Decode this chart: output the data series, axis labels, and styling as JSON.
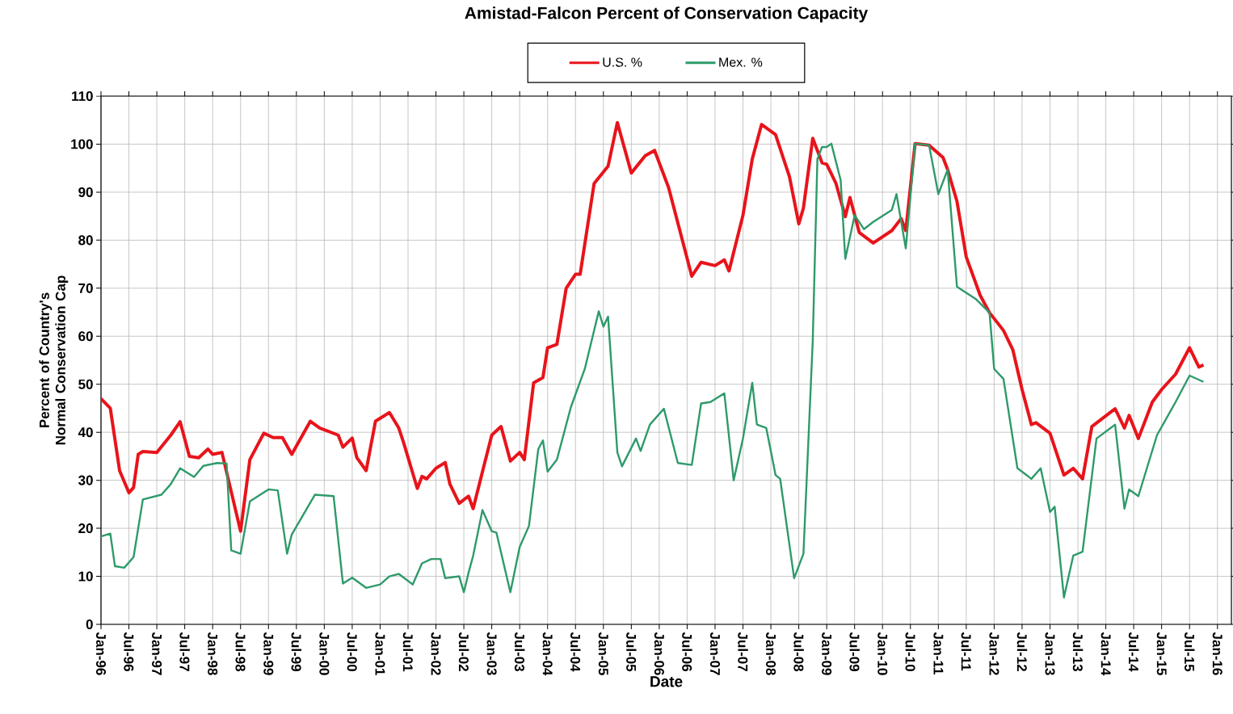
{
  "chart_data": {
    "type": "line",
    "title": "Amistad-Falcon  Percent of Conservation Capacity",
    "xlabel": "Date",
    "ylabel": "Percent of Country's Normal Conservation Cap",
    "xlim": [
      "1996-01",
      "2016-04"
    ],
    "ylim": [
      0,
      110
    ],
    "yticks": [
      0,
      10,
      20,
      30,
      40,
      50,
      60,
      70,
      80,
      90,
      100,
      110
    ],
    "xticks": [
      {
        "value": "1996-01",
        "label": "Jan-96"
      },
      {
        "value": "1996-07",
        "label": "Jul-96"
      },
      {
        "value": "1997-01",
        "label": "Jan-97"
      },
      {
        "value": "1997-07",
        "label": "Jul-97"
      },
      {
        "value": "1998-01",
        "label": "Jan-98"
      },
      {
        "value": "1998-07",
        "label": "Jul-98"
      },
      {
        "value": "1999-01",
        "label": "Jan-99"
      },
      {
        "value": "1999-07",
        "label": "Jul-99"
      },
      {
        "value": "2000-01",
        "label": "Jan-00"
      },
      {
        "value": "2000-07",
        "label": "Jul-00"
      },
      {
        "value": "2001-01",
        "label": "Jan-01"
      },
      {
        "value": "2001-07",
        "label": "Jul-01"
      },
      {
        "value": "2002-01",
        "label": "Jan-02"
      },
      {
        "value": "2002-07",
        "label": "Jul-02"
      },
      {
        "value": "2003-01",
        "label": "Jan-03"
      },
      {
        "value": "2003-07",
        "label": "Jul-03"
      },
      {
        "value": "2004-01",
        "label": "Jan-04"
      },
      {
        "value": "2004-07",
        "label": "Jul-04"
      },
      {
        "value": "2005-01",
        "label": "Jan-05"
      },
      {
        "value": "2005-07",
        "label": "Jul-05"
      },
      {
        "value": "2006-01",
        "label": "Jan-06"
      },
      {
        "value": "2006-07",
        "label": "Jul-06"
      },
      {
        "value": "2007-01",
        "label": "Jan-07"
      },
      {
        "value": "2007-07",
        "label": "Jul-07"
      },
      {
        "value": "2008-01",
        "label": "Jan-08"
      },
      {
        "value": "2008-07",
        "label": "Jul-08"
      },
      {
        "value": "2009-01",
        "label": "Jan-09"
      },
      {
        "value": "2009-07",
        "label": "Jul-09"
      },
      {
        "value": "2010-01",
        "label": "Jan-10"
      },
      {
        "value": "2010-07",
        "label": "Jul-10"
      },
      {
        "value": "2011-01",
        "label": "Jan-11"
      },
      {
        "value": "2011-07",
        "label": "Jul-11"
      },
      {
        "value": "2012-01",
        "label": "Jan-12"
      },
      {
        "value": "2012-07",
        "label": "Jul-12"
      },
      {
        "value": "2013-01",
        "label": "Jan-13"
      },
      {
        "value": "2013-07",
        "label": "Jul-13"
      },
      {
        "value": "2014-01",
        "label": "Jan-14"
      },
      {
        "value": "2014-07",
        "label": "Jul-14"
      },
      {
        "value": "2015-01",
        "label": "Jan-15"
      },
      {
        "value": "2015-07",
        "label": "Jul-15"
      },
      {
        "value": "2016-01",
        "label": "Jan-16"
      }
    ],
    "grid": true,
    "legend": "top",
    "marker": "none",
    "line_style": "solid",
    "series": [
      {
        "name": "U.S. %",
        "color": "#e8141b",
        "x": [
          "1996-01",
          "1996-03",
          "1996-05",
          "1996-07",
          "1996-08",
          "1996-09",
          "1996-10",
          "1997-01",
          "1997-04",
          "1997-06",
          "1997-08",
          "1997-10",
          "1997-12",
          "1998-01",
          "1998-03",
          "1998-07",
          "1998-09",
          "1998-12",
          "1999-02",
          "1999-04",
          "1999-06",
          "1999-10",
          "1999-12",
          "2000-04",
          "2000-05",
          "2000-07",
          "2000-08",
          "2000-10",
          "2000-12",
          "2001-03",
          "2001-05",
          "2001-06",
          "2001-09",
          "2001-10",
          "2001-11",
          "2002-01",
          "2002-03",
          "2002-04",
          "2002-06",
          "2002-08",
          "2002-09",
          "2002-11",
          "2003-01",
          "2003-03",
          "2003-05",
          "2003-07",
          "2003-08",
          "2003-10",
          "2003-12",
          "2004-01",
          "2004-03",
          "2004-05",
          "2004-07",
          "2004-08",
          "2004-11",
          "2005-02",
          "2005-04",
          "2005-07",
          "2005-10",
          "2005-12",
          "2006-03",
          "2006-08",
          "2006-10",
          "2007-01",
          "2007-03",
          "2007-04",
          "2007-07",
          "2007-09",
          "2007-11",
          "2008-02",
          "2008-05",
          "2008-07",
          "2008-08",
          "2008-10",
          "2008-12",
          "2009-01",
          "2009-03",
          "2009-05",
          "2009-06",
          "2009-08",
          "2009-11",
          "2010-03",
          "2010-05",
          "2010-06",
          "2010-08",
          "2010-11",
          "2011-02",
          "2011-03",
          "2011-05",
          "2011-07",
          "2011-10",
          "2011-12",
          "2012-03",
          "2012-05",
          "2012-07",
          "2012-09",
          "2012-10",
          "2013-01",
          "2013-04",
          "2013-06",
          "2013-08",
          "2013-10",
          "2014-03",
          "2014-05",
          "2014-06",
          "2014-08",
          "2014-11",
          "2015-01",
          "2015-04",
          "2015-07",
          "2015-09",
          "2015-10"
        ],
        "values": [
          47,
          45,
          32,
          27.4,
          28.5,
          35.4,
          36,
          35.8,
          39.4,
          42.2,
          35,
          34.7,
          36.5,
          35.4,
          35.8,
          19.4,
          34.3,
          39.8,
          38.9,
          38.9,
          35.4,
          42.3,
          40.9,
          39.4,
          36.9,
          38.8,
          34.7,
          32,
          42.3,
          44.1,
          40.9,
          38,
          28.3,
          30.8,
          30.3,
          32.5,
          33.7,
          29.2,
          25.2,
          26.7,
          24.1,
          31.8,
          39.4,
          41.2,
          34,
          35.8,
          34.3,
          50.3,
          51.4,
          57.6,
          58.3,
          70,
          72.9,
          72.9,
          91.8,
          95.4,
          104.5,
          94,
          97.6,
          98.7,
          91,
          72.5,
          75.4,
          74.7,
          75.9,
          73.6,
          85.2,
          96.9,
          104.1,
          102,
          93.2,
          83.4,
          86.7,
          101.2,
          96.1,
          95.8,
          91.8,
          84.9,
          88.9,
          81.6,
          79.4,
          82,
          84.5,
          82,
          100.1,
          99.8,
          97.2,
          94.7,
          88.1,
          76.5,
          68.5,
          64.9,
          61.2,
          57.2,
          48.9,
          41.6,
          42,
          39.8,
          31.1,
          32.5,
          30.3,
          41.2,
          44.9,
          40.9,
          43.5,
          38.7,
          46.3,
          48.9,
          52.1,
          57.6,
          53.6,
          54
        ]
      },
      {
        "name": "Mex. %",
        "color": "#2e9a6a",
        "x": [
          "1996-01",
          "1996-03",
          "1996-04",
          "1996-06",
          "1996-08",
          "1996-10",
          "1997-02",
          "1997-04",
          "1997-06",
          "1997-09",
          "1997-11",
          "1998-02",
          "1998-04",
          "1998-05",
          "1998-07",
          "1998-09",
          "1999-01",
          "1999-03",
          "1999-05",
          "1999-06",
          "1999-11",
          "2000-03",
          "2000-05",
          "2000-07",
          "2000-10",
          "2001-01",
          "2001-03",
          "2001-05",
          "2001-08",
          "2001-10",
          "2001-12",
          "2002-02",
          "2002-03",
          "2002-06",
          "2002-07",
          "2002-08",
          "2002-09",
          "2002-11",
          "2003-01",
          "2003-02",
          "2003-05",
          "2003-07",
          "2003-09",
          "2003-11",
          "2003-12",
          "2004-01",
          "2004-03",
          "2004-06",
          "2004-09",
          "2004-12",
          "2005-01",
          "2005-02",
          "2005-04",
          "2005-05",
          "2005-08",
          "2005-09",
          "2005-11",
          "2006-02",
          "2006-05",
          "2006-08",
          "2006-10",
          "2006-12",
          "2007-03",
          "2007-05",
          "2007-07",
          "2007-09",
          "2007-10",
          "2007-12",
          "2008-02",
          "2008-03",
          "2008-06",
          "2008-08",
          "2008-10",
          "2008-11",
          "2008-12",
          "2009-01",
          "2009-02",
          "2009-04",
          "2009-05",
          "2009-07",
          "2009-09",
          "2009-11",
          "2010-03",
          "2010-04",
          "2010-06",
          "2010-08",
          "2010-11",
          "2011-01",
          "2011-03",
          "2011-05",
          "2011-09",
          "2011-12",
          "2012-01",
          "2012-03",
          "2012-06",
          "2012-07",
          "2012-09",
          "2012-11",
          "2013-01",
          "2013-02",
          "2013-04",
          "2013-06",
          "2013-08",
          "2013-11",
          "2014-03",
          "2014-05",
          "2014-06",
          "2014-08",
          "2014-12",
          "2015-04",
          "2015-07",
          "2015-10"
        ],
        "values": [
          18.3,
          18.9,
          12.1,
          11.8,
          14,
          26,
          27,
          29.2,
          32.5,
          30.7,
          33,
          33.6,
          33.5,
          15.4,
          14.7,
          25.6,
          28.1,
          27.9,
          14.7,
          18.7,
          27,
          26.7,
          8.5,
          9.7,
          7.6,
          8.3,
          10,
          10.5,
          8.3,
          12.7,
          13.6,
          13.6,
          9.6,
          10,
          6.7,
          10.7,
          14.3,
          23.8,
          19.4,
          19.1,
          6.7,
          16.1,
          20.5,
          36.5,
          38.3,
          31.8,
          34.3,
          45.2,
          53.2,
          65.2,
          62,
          64.1,
          35.8,
          32.9,
          38.7,
          36.1,
          41.6,
          44.9,
          33.6,
          33.2,
          46,
          46.3,
          48.1,
          30,
          38.7,
          50.3,
          41.6,
          40.9,
          31.1,
          30.3,
          9.6,
          14.7,
          59,
          96.9,
          99.4,
          99.4,
          100.1,
          92.5,
          76.1,
          85.2,
          82.3,
          83.8,
          86.3,
          89.6,
          78.3,
          100.1,
          99.8,
          89.6,
          94.7,
          70.3,
          67.8,
          64.9,
          53.2,
          51.1,
          32.5,
          31.8,
          30.3,
          32.5,
          23.4,
          24.5,
          5.6,
          14.3,
          15.1,
          38.7,
          41.6,
          24.1,
          28.1,
          26.7,
          39.4,
          46.3,
          51.8,
          50.5
        ]
      }
    ]
  }
}
